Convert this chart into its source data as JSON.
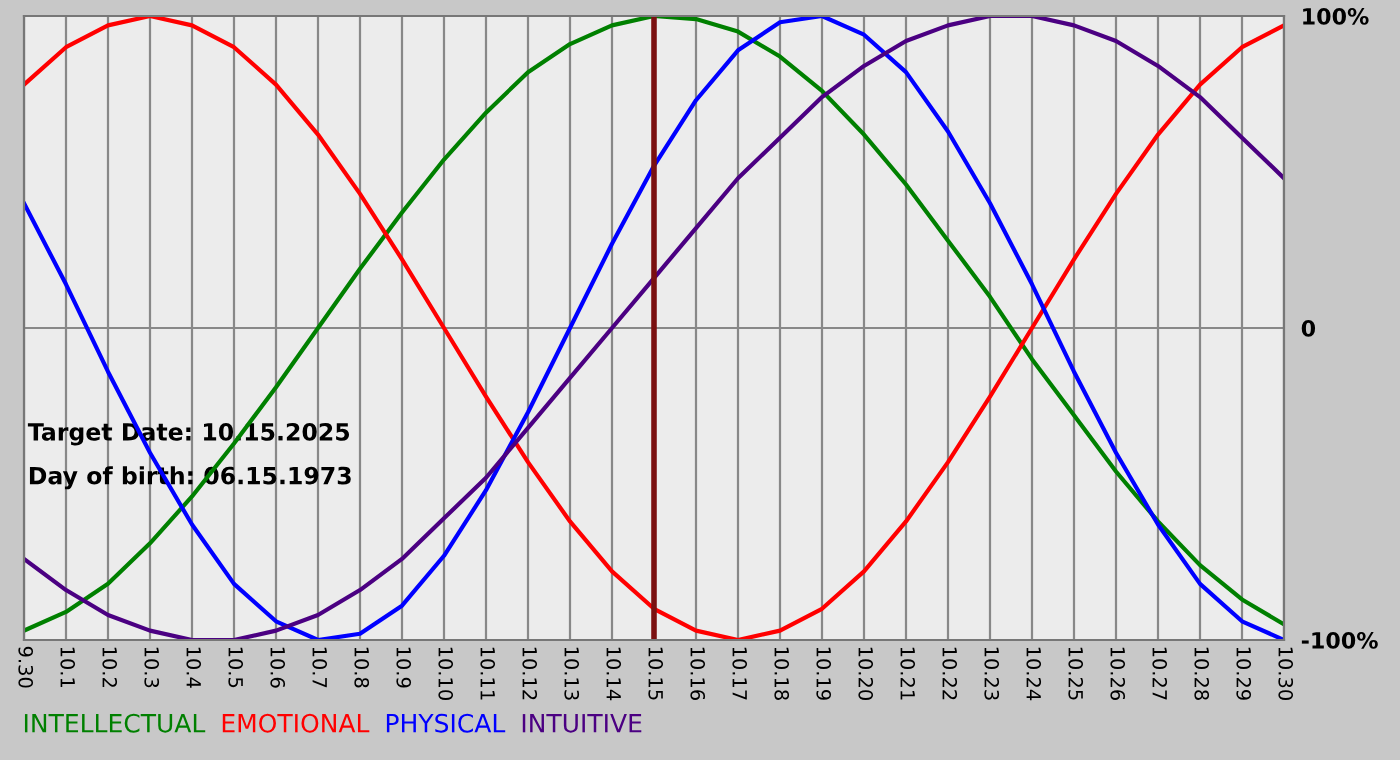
{
  "chart_data": {
    "type": "line",
    "categories": [
      "9.30",
      "10.1",
      "10.2",
      "10.3",
      "10.4",
      "10.5",
      "10.6",
      "10.7",
      "10.8",
      "10.9",
      "10.10",
      "10.11",
      "10.12",
      "10.13",
      "10.14",
      "10.15",
      "10.16",
      "10.17",
      "10.18",
      "10.19",
      "10.20",
      "10.21",
      "10.22",
      "10.23",
      "10.24",
      "10.25",
      "10.26",
      "10.27",
      "10.28",
      "10.29",
      "10.30"
    ],
    "series": [
      {
        "name": "INTELLECTUAL",
        "color": "#008000",
        "values": [
          -97,
          -91,
          -82,
          -69,
          -54,
          -37,
          -19,
          0,
          19,
          37,
          54,
          69,
          82,
          91,
          97,
          100,
          99,
          95,
          87,
          76,
          62,
          46,
          28,
          10,
          -10,
          -28,
          -46,
          -62,
          -76,
          -87,
          -95
        ]
      },
      {
        "name": "EMOTIONAL",
        "color": "#ff0000",
        "values": [
          78,
          90,
          97,
          100,
          97,
          90,
          78,
          62,
          43,
          22,
          0,
          -22,
          -43,
          -62,
          -78,
          -90,
          -97,
          -100,
          -97,
          -90,
          -78,
          -62,
          -43,
          -22,
          0,
          22,
          43,
          62,
          78,
          90,
          97
        ]
      },
      {
        "name": "PHYSICAL",
        "color": "#0000ff",
        "values": [
          40,
          14,
          -14,
          -40,
          -63,
          -82,
          -94,
          -100,
          -98,
          -89,
          -73,
          -52,
          -27,
          0,
          27,
          52,
          73,
          89,
          98,
          100,
          94,
          82,
          63,
          40,
          14,
          -14,
          -40,
          -63,
          -82,
          -94,
          -100
        ]
      },
      {
        "name": "INTUITIVE",
        "color": "#4b0082",
        "values": [
          -74,
          -84,
          -92,
          -97,
          -100,
          -100,
          -97,
          -92,
          -84,
          -74,
          -61,
          -48,
          -32,
          -16,
          0,
          16,
          32,
          48,
          61,
          74,
          84,
          92,
          97,
          100,
          100,
          97,
          92,
          84,
          74,
          61,
          48
        ]
      }
    ],
    "ylim": [
      -100,
      100
    ],
    "yticks": [
      {
        "value": 100,
        "label": "100%"
      },
      0,
      {
        "value": -100,
        "label": "-100%"
      }
    ],
    "ref_lines": [
      {
        "axis": "x",
        "value": "10.15",
        "color": "#7a1010"
      }
    ],
    "annotations": [
      "Target Date: 10.15.2025",
      "Day of birth: 06.15.1973"
    ],
    "grid": true,
    "legend": "bottom left",
    "marker": "none",
    "line_style": "solid"
  }
}
